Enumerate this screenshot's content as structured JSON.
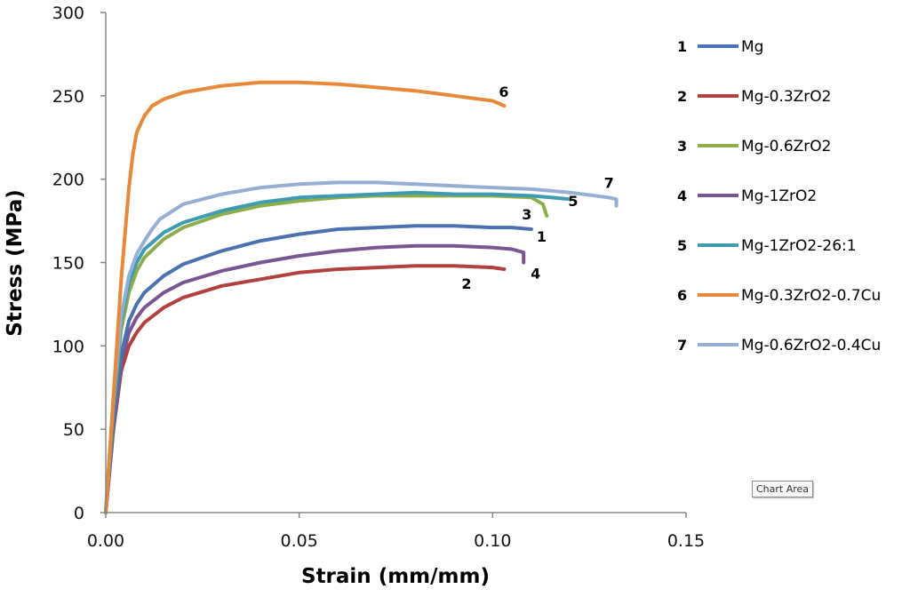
{
  "chart_data": {
    "type": "line",
    "title": "",
    "xlabel": "Strain (mm/mm)",
    "ylabel": "Stress (MPa)",
    "xlim": [
      0,
      0.15
    ],
    "ylim": [
      0,
      300
    ],
    "xticks": [
      0,
      0.05,
      0.1,
      0.15
    ],
    "xtick_labels": [
      "0.00",
      "0.05",
      "0.10",
      "0.15"
    ],
    "yticks": [
      0,
      50,
      100,
      150,
      200,
      250,
      300
    ],
    "ytick_labels": [
      "0",
      "50",
      "100",
      "150",
      "200",
      "250",
      "300"
    ],
    "grid": false,
    "legend_position": "right",
    "series": [
      {
        "id": "1",
        "name": "Mg",
        "color": "#4a72b0",
        "x": [
          0,
          0.002,
          0.004,
          0.006,
          0.008,
          0.01,
          0.015,
          0.02,
          0.03,
          0.04,
          0.05,
          0.06,
          0.07,
          0.08,
          0.09,
          0.1,
          0.105,
          0.11
        ],
        "y": [
          0,
          55,
          95,
          115,
          125,
          132,
          142,
          149,
          157,
          163,
          167,
          170,
          171,
          172,
          172,
          171,
          171,
          170
        ],
        "end_label": "1"
      },
      {
        "id": "2",
        "name": "Mg-0.3ZrO2",
        "color": "#b0413e",
        "x": [
          0,
          0.002,
          0.004,
          0.006,
          0.008,
          0.01,
          0.015,
          0.02,
          0.03,
          0.04,
          0.05,
          0.06,
          0.07,
          0.08,
          0.09,
          0.1,
          0.103
        ],
        "y": [
          0,
          50,
          85,
          100,
          108,
          114,
          123,
          129,
          136,
          140,
          144,
          146,
          147,
          148,
          148,
          147,
          146
        ],
        "end_label": "2"
      },
      {
        "id": "3",
        "name": "Mg-0.6ZrO2",
        "color": "#8cae4a",
        "x": [
          0,
          0.002,
          0.004,
          0.006,
          0.008,
          0.01,
          0.015,
          0.02,
          0.03,
          0.04,
          0.05,
          0.06,
          0.07,
          0.08,
          0.09,
          0.1,
          0.11,
          0.113,
          0.114
        ],
        "y": [
          0,
          65,
          110,
          132,
          145,
          153,
          164,
          171,
          179,
          184,
          187,
          189,
          190,
          190,
          190,
          190,
          189,
          185,
          178
        ],
        "end_label": "3"
      },
      {
        "id": "4",
        "name": "Mg-1ZrO2",
        "color": "#7a5593",
        "x": [
          0,
          0.002,
          0.004,
          0.006,
          0.008,
          0.01,
          0.015,
          0.02,
          0.03,
          0.04,
          0.05,
          0.06,
          0.07,
          0.08,
          0.09,
          0.1,
          0.105,
          0.108,
          0.108
        ],
        "y": [
          0,
          52,
          90,
          108,
          117,
          123,
          132,
          138,
          145,
          150,
          154,
          157,
          159,
          160,
          160,
          159,
          158,
          156,
          150
        ],
        "end_label": "4"
      },
      {
        "id": "5",
        "name": "Mg-1ZrO2-26:1",
        "color": "#3e9bb1",
        "x": [
          0,
          0.002,
          0.004,
          0.006,
          0.008,
          0.01,
          0.015,
          0.02,
          0.03,
          0.04,
          0.05,
          0.06,
          0.07,
          0.08,
          0.09,
          0.1,
          0.11,
          0.115,
          0.12
        ],
        "y": [
          0,
          68,
          115,
          138,
          150,
          158,
          168,
          174,
          181,
          186,
          189,
          190,
          191,
          192,
          191,
          191,
          190,
          189,
          188
        ],
        "end_label": "5"
      },
      {
        "id": "6",
        "name": "Mg-0.3ZrO2-0.7Cu",
        "color": "#e8893a",
        "x": [
          0,
          0.002,
          0.004,
          0.006,
          0.007,
          0.008,
          0.01,
          0.012,
          0.015,
          0.02,
          0.03,
          0.04,
          0.05,
          0.06,
          0.07,
          0.08,
          0.09,
          0.1,
          0.103
        ],
        "y": [
          0,
          70,
          140,
          195,
          215,
          228,
          238,
          244,
          248,
          252,
          256,
          258,
          258,
          257,
          255,
          253,
          250,
          247,
          244
        ],
        "end_label": "6"
      },
      {
        "id": "7",
        "name": "Mg-0.6ZrO2-0.4Cu",
        "color": "#95aed4",
        "x": [
          0,
          0.002,
          0.004,
          0.006,
          0.008,
          0.01,
          0.012,
          0.014,
          0.016,
          0.02,
          0.03,
          0.04,
          0.05,
          0.06,
          0.07,
          0.08,
          0.09,
          0.1,
          0.11,
          0.12,
          0.13,
          0.132,
          0.132
        ],
        "y": [
          0,
          70,
          118,
          142,
          155,
          163,
          170,
          176,
          179,
          185,
          191,
          195,
          197,
          198,
          198,
          197,
          196,
          195,
          194,
          192,
          189,
          188,
          184
        ],
        "end_label": "7"
      }
    ]
  },
  "tooltip": {
    "text": "Chart Area"
  }
}
